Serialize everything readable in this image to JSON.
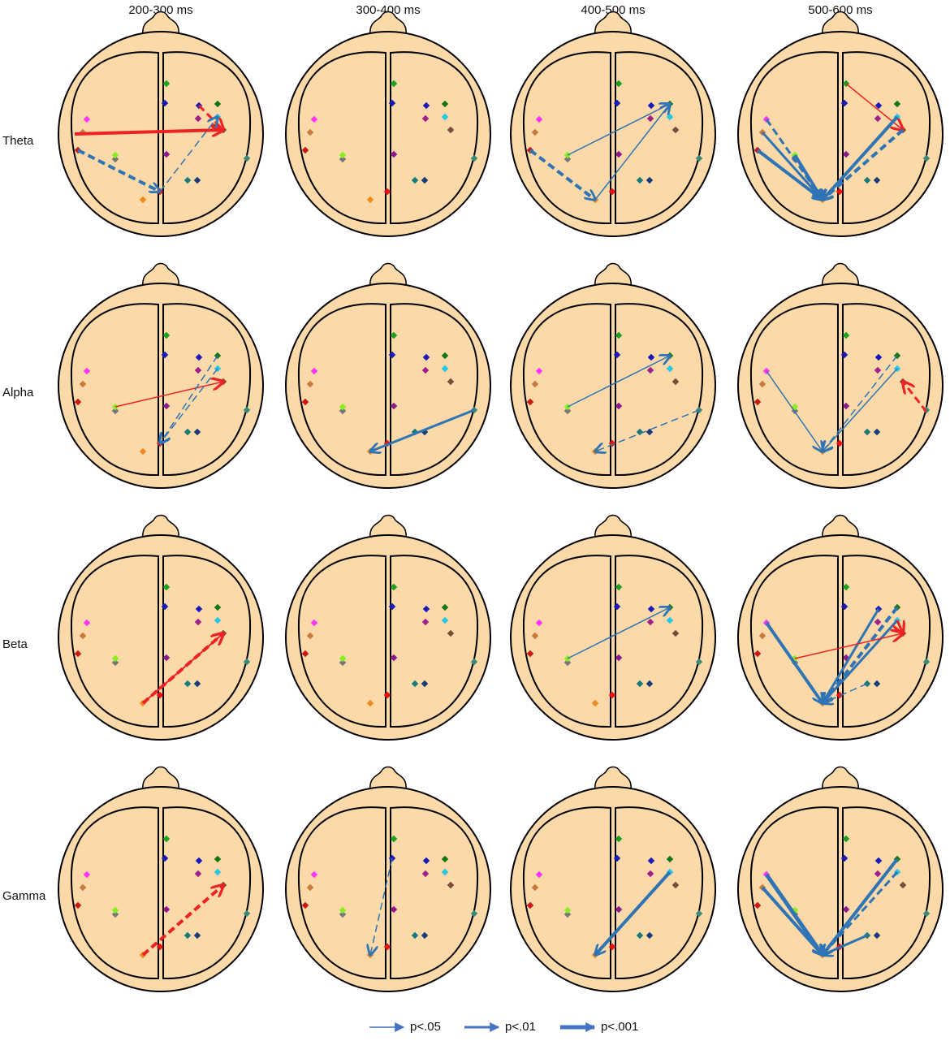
{
  "column_headers": [
    "200-300 ms",
    "300-400 ms",
    "400-500 ms",
    "500-600 ms"
  ],
  "row_labels": [
    "Theta",
    "Alpha",
    "Beta",
    "Gamma"
  ],
  "legend": [
    "p<.05",
    "p<.01",
    "p<.001"
  ]
}
